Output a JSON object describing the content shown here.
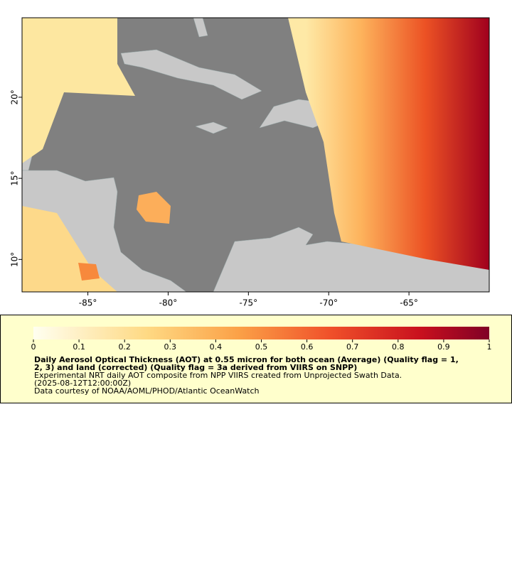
{
  "map": {
    "xlim": [
      -89.1,
      -60
    ],
    "ylim": [
      8,
      24.9
    ],
    "xticks": [
      {
        "value": -85,
        "label": "-85°"
      },
      {
        "value": -80,
        "label": "-80°"
      },
      {
        "value": -75,
        "label": "-75°"
      },
      {
        "value": -70,
        "label": "-70°"
      },
      {
        "value": -65,
        "label": "-65°"
      }
    ],
    "yticks": [
      {
        "value": 10,
        "label": "10°"
      },
      {
        "value": 15,
        "label": "15°"
      },
      {
        "value": 20,
        "label": "20°"
      }
    ]
  },
  "colorbar": {
    "range": [
      0,
      1
    ],
    "ticks": [
      0,
      0.1,
      0.2,
      0.3,
      0.4,
      0.5,
      0.6,
      0.7,
      0.8,
      0.9,
      1
    ]
  },
  "legend": {
    "title_lines": [
      "Daily Aerosol Optical Thickness (AOT) at 0.55 micron for both ocean (Average) (Quality flag = 1,",
      "2, 3) and land (corrected) (Quality flag = 3a derived from VIIRS on SNPP)"
    ],
    "lines": [
      "Experimental NRT daily AOT composite from NPP VIIRS created from Unprojected Swath Data.",
      "(2025-08-12T12:00:00Z)",
      "Data courtesy of NOAA/AOML/PHOD/Atlantic OceanWatch"
    ]
  }
}
